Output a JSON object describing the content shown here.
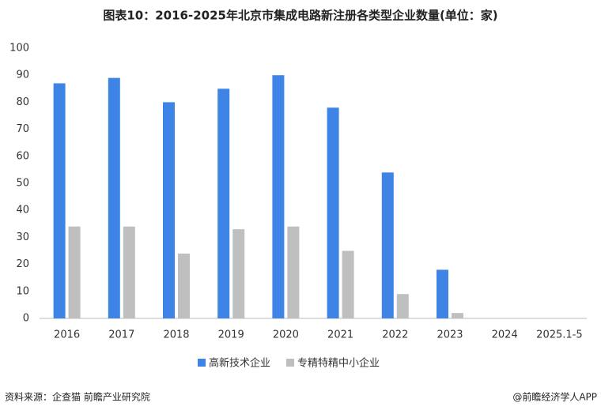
{
  "chart_data": {
    "type": "bar",
    "title": "图表10：2016-2025年北京市集成电路新注册各类型企业数量(单位：家)",
    "categories": [
      "2016",
      "2017",
      "2018",
      "2019",
      "2020",
      "2021",
      "2022",
      "2023",
      "2024",
      "2025.1-5"
    ],
    "series": [
      {
        "name": "高新技术企业",
        "color": "#3d84e6",
        "values": [
          87,
          89,
          80,
          85,
          90,
          78,
          54,
          18,
          0,
          0
        ]
      },
      {
        "name": "专精特精中小企业",
        "color": "#bfbfbf",
        "values": [
          34,
          34,
          24,
          33,
          34,
          25,
          9,
          2,
          0,
          0
        ]
      }
    ],
    "ylim": [
      0,
      100
    ],
    "yticks": [
      0,
      10,
      20,
      30,
      40,
      50,
      60,
      70,
      80,
      90,
      100
    ],
    "grid": false,
    "legend": "bottom",
    "source": "资料来源：企查猫 前瞻产业研究院",
    "credit": "@前瞻经济学人APP"
  }
}
